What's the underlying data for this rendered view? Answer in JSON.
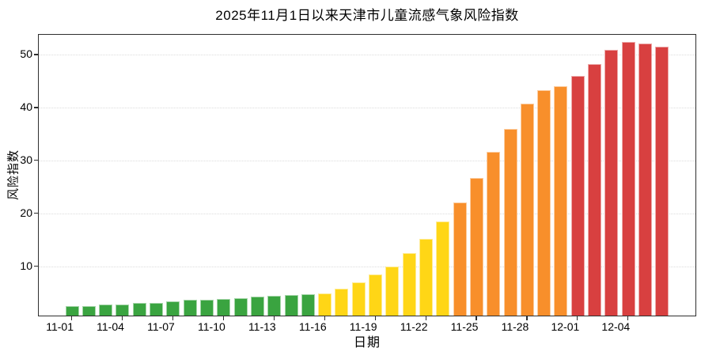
{
  "title": "2025年11月1日以来天津市儿童流感气象风险指数",
  "chart_data": {
    "type": "bar",
    "title": "2025年11月1日以来天津市儿童流感气象风险指数",
    "xlabel": "日期",
    "ylabel": "风险指数",
    "x": [
      "11-01",
      "11-02",
      "11-03",
      "11-04",
      "11-05",
      "11-06",
      "11-07",
      "11-08",
      "11-09",
      "11-10",
      "11-11",
      "11-12",
      "11-13",
      "11-14",
      "11-15",
      "11-16",
      "11-17",
      "11-18",
      "11-19",
      "11-20",
      "11-21",
      "11-22",
      "11-23",
      "11-24",
      "11-25",
      "11-26",
      "11-27",
      "11-28",
      "11-29",
      "11-30",
      "12-01",
      "12-02",
      "12-03",
      "12-04",
      "12-05",
      "12-06"
    ],
    "values": [
      2.3,
      2.2,
      2.6,
      2.5,
      2.9,
      2.8,
      3.1,
      3.4,
      3.5,
      3.6,
      3.8,
      4.0,
      4.2,
      4.4,
      4.5,
      4.7,
      5.5,
      6.8,
      8.2,
      9.7,
      12.2,
      15.0,
      18.2,
      21.8,
      26.4,
      31.4,
      35.7,
      40.5,
      43.1,
      43.8,
      45.7,
      48.0,
      50.7,
      52.1,
      51.9,
      51.3
    ],
    "point_colors": [
      "green",
      "green",
      "green",
      "green",
      "green",
      "green",
      "green",
      "green",
      "green",
      "green",
      "green",
      "green",
      "green",
      "green",
      "green",
      "yellow",
      "yellow",
      "yellow",
      "yellow",
      "yellow",
      "yellow",
      "yellow",
      "yellow",
      "orange",
      "orange",
      "orange",
      "orange",
      "orange",
      "orange",
      "orange",
      "red",
      "red",
      "red",
      "red",
      "red",
      "red"
    ],
    "color_map": {
      "green": "#3aa440",
      "yellow": "#ffd616",
      "orange": "#f88f2b",
      "red": "#d84040"
    },
    "yticks": [
      10,
      20,
      30,
      40,
      50
    ],
    "ylim": [
      0.45,
      53.8
    ],
    "xtick_every": 3,
    "grid": "horizontal-dotted",
    "legend": "none",
    "spine_color": "#2e2e2e"
  }
}
